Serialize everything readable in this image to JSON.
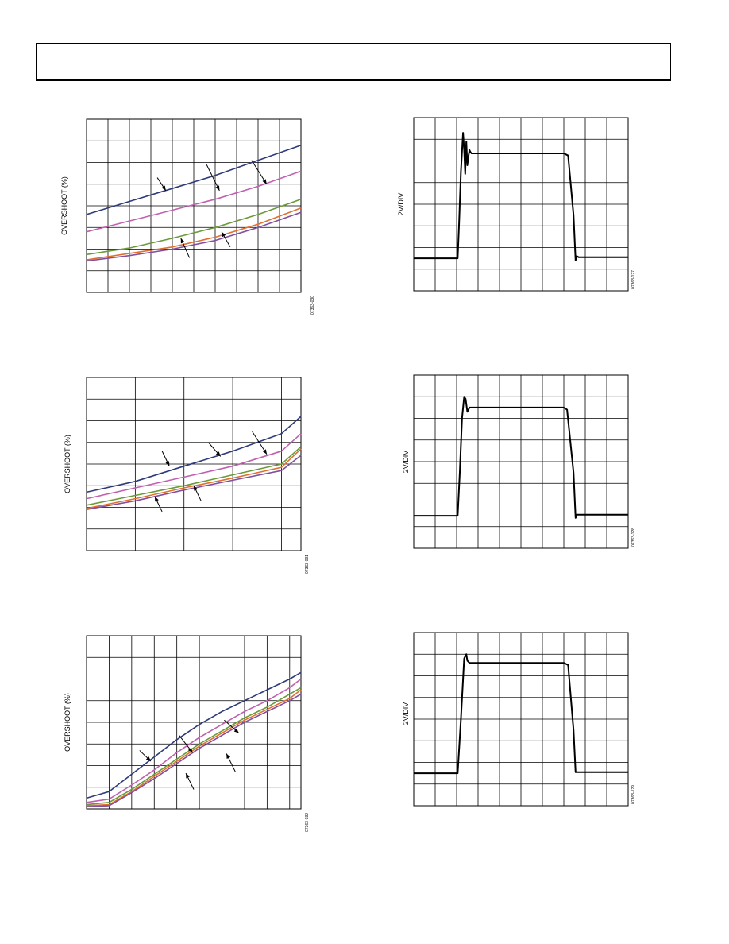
{
  "page": {
    "header": ""
  },
  "charts": [
    {
      "id": "ov1",
      "chart_data": {
        "type": "line",
        "ylabel": "OVERSHOOT (%)",
        "xlim": [
          0,
          10
        ],
        "ylim": [
          0,
          8
        ],
        "x_divisions": 10,
        "y_divisions": 8,
        "figure_id": "07363-030",
        "series": [
          {
            "color": "#2e3a7a",
            "x": [
              0,
              2,
              4,
              6,
              8,
              10
            ],
            "y": [
              3.6,
              4.2,
              4.8,
              5.4,
              6.1,
              6.8
            ]
          },
          {
            "color": "#c060b0",
            "x": [
              0,
              2,
              4,
              6,
              8,
              10
            ],
            "y": [
              2.8,
              3.3,
              3.8,
              4.3,
              4.9,
              5.6
            ]
          },
          {
            "color": "#6a9a3a",
            "x": [
              0,
              2,
              4,
              6,
              8,
              10
            ],
            "y": [
              1.75,
              2.05,
              2.5,
              3.0,
              3.6,
              4.3
            ]
          },
          {
            "color": "#e07030",
            "x": [
              0,
              2,
              4,
              6,
              8,
              10
            ],
            "y": [
              1.5,
              1.8,
              2.1,
              2.55,
              3.15,
              3.9
            ]
          },
          {
            "color": "#8050a0",
            "x": [
              0,
              2,
              4,
              6,
              8,
              10
            ],
            "y": [
              1.45,
              1.7,
              2.0,
              2.4,
              3.0,
              3.7
            ]
          }
        ],
        "arrows": [
          {
            "from": [
              3.3,
              5.3
            ],
            "to": [
              3.7,
              4.7
            ]
          },
          {
            "from": [
              5.6,
              5.9
            ],
            "to": [
              6.2,
              4.7
            ]
          },
          {
            "from": [
              7.7,
              6.1
            ],
            "to": [
              8.4,
              5.0
            ]
          },
          {
            "from": [
              4.8,
              1.6
            ],
            "to": [
              4.4,
              2.5
            ]
          },
          {
            "from": [
              6.7,
              2.1
            ],
            "to": [
              6.3,
              2.8
            ]
          }
        ]
      }
    },
    {
      "id": "pulse1",
      "chart_data": {
        "type": "line",
        "ylabel": "2V/DIV",
        "xlim": [
          0,
          10
        ],
        "ylim": [
          0,
          8
        ],
        "x_divisions": 10,
        "y_divisions": 8,
        "figure_id": "07363-127",
        "series": [
          {
            "color": "#000000",
            "x": [
              0,
              2.05,
              2.12,
              2.2,
              2.3,
              2.35,
              2.4,
              2.45,
              2.5,
              2.55,
              2.6,
              2.65,
              2.7,
              2.8,
              7.0,
              7.2,
              7.45,
              7.55,
              7.6,
              7.7,
              10
            ],
            "y": [
              1.5,
              1.5,
              3.2,
              5.5,
              7.3,
              6.5,
              5.4,
              6.9,
              5.8,
              6.2,
              6.5,
              6.4,
              6.35,
              6.35,
              6.35,
              6.25,
              3.5,
              1.4,
              1.6,
              1.55,
              1.55
            ]
          }
        ]
      }
    },
    {
      "id": "ov2",
      "chart_data": {
        "type": "line",
        "ylabel": "OVERSHOOT (%)",
        "xlim": [
          0,
          4.4
        ],
        "ylim": [
          0,
          8
        ],
        "x_divisions": 4.4,
        "y_divisions": 8,
        "figure_id": "07363-031",
        "series": [
          {
            "color": "#2e3a7a",
            "x": [
              0,
              1,
              2,
              3,
              4,
              4.4
            ],
            "y": [
              2.7,
              3.2,
              3.9,
              4.6,
              5.4,
              6.2
            ]
          },
          {
            "color": "#c060b0",
            "x": [
              0,
              1,
              2,
              3,
              4,
              4.4
            ],
            "y": [
              2.4,
              2.9,
              3.4,
              3.9,
              4.6,
              5.4
            ]
          },
          {
            "color": "#6a9a3a",
            "x": [
              0,
              1,
              2,
              3,
              4,
              4.4
            ],
            "y": [
              2.1,
              2.55,
              3.0,
              3.5,
              4.0,
              4.8
            ]
          },
          {
            "color": "#e07030",
            "x": [
              0,
              1,
              2,
              3,
              4,
              4.4
            ],
            "y": [
              1.95,
              2.4,
              2.9,
              3.35,
              3.85,
              4.7
            ]
          },
          {
            "color": "#8050a0",
            "x": [
              0,
              1,
              2,
              3,
              4,
              4.4
            ],
            "y": [
              1.9,
              2.3,
              2.8,
              3.25,
              3.7,
              4.4
            ]
          }
        ],
        "arrows": [
          {
            "from": [
              1.55,
              4.6
            ],
            "to": [
              1.7,
              3.9
            ]
          },
          {
            "from": [
              2.5,
              5.0
            ],
            "to": [
              2.75,
              4.35
            ]
          },
          {
            "from": [
              3.4,
              5.5
            ],
            "to": [
              3.7,
              4.45
            ]
          },
          {
            "from": [
              1.55,
              1.8
            ],
            "to": [
              1.4,
              2.5
            ]
          },
          {
            "from": [
              2.35,
              2.3
            ],
            "to": [
              2.2,
              3.0
            ]
          }
        ]
      }
    },
    {
      "id": "pulse2",
      "chart_data": {
        "type": "line",
        "ylabel": "2V/DIV",
        "xlim": [
          0,
          10
        ],
        "ylim": [
          0,
          8
        ],
        "x_divisions": 10,
        "y_divisions": 8,
        "figure_id": "07363-128",
        "series": [
          {
            "color": "#000000",
            "x": [
              0,
              2.05,
              2.15,
              2.25,
              2.35,
              2.42,
              2.5,
              2.6,
              2.7,
              2.8,
              7.0,
              7.15,
              7.45,
              7.55,
              7.6,
              7.7,
              10
            ],
            "y": [
              1.5,
              1.5,
              3.5,
              6.0,
              7.0,
              6.9,
              6.3,
              6.5,
              6.5,
              6.5,
              6.5,
              6.4,
              3.5,
              1.4,
              1.55,
              1.55,
              1.55
            ]
          }
        ]
      }
    },
    {
      "id": "ov3",
      "chart_data": {
        "type": "line",
        "ylabel": "OVERSHOOT (%)",
        "xlim": [
          0,
          9.5
        ],
        "ylim": [
          0,
          8
        ],
        "x_divisions": 9.5,
        "y_divisions": 8,
        "figure_id": "07363-032",
        "series": [
          {
            "color": "#2e3a7a",
            "x": [
              0,
              1,
              2,
              3,
              4,
              5,
              6,
              7,
              8,
              9,
              9.5
            ],
            "y": [
              0.5,
              0.8,
              1.6,
              2.4,
              3.2,
              3.9,
              4.5,
              5.0,
              5.5,
              6.0,
              6.3
            ]
          },
          {
            "color": "#c060b0",
            "x": [
              0,
              1,
              2,
              3,
              4,
              5,
              6,
              7,
              8,
              9,
              9.5
            ],
            "y": [
              0.3,
              0.45,
              1.1,
              1.8,
              2.6,
              3.3,
              3.9,
              4.5,
              5.0,
              5.6,
              6.0
            ]
          },
          {
            "color": "#6a9a3a",
            "x": [
              0,
              1,
              2,
              3,
              4,
              5,
              6,
              7,
              8,
              9,
              9.5
            ],
            "y": [
              0.2,
              0.3,
              0.9,
              1.6,
              2.3,
              3.0,
              3.6,
              4.2,
              4.7,
              5.3,
              5.6
            ]
          },
          {
            "color": "#e07030",
            "x": [
              0,
              1,
              2,
              3,
              4,
              5,
              6,
              7,
              8,
              9,
              9.5
            ],
            "y": [
              0.15,
              0.2,
              0.8,
              1.5,
              2.2,
              2.9,
              3.5,
              4.1,
              4.6,
              5.1,
              5.5
            ]
          },
          {
            "color": "#8050a0",
            "x": [
              0,
              1,
              2,
              3,
              4,
              5,
              6,
              7,
              8,
              9,
              9.5
            ],
            "y": [
              0.1,
              0.15,
              0.75,
              1.4,
              2.1,
              2.8,
              3.4,
              4.0,
              4.5,
              5.0,
              5.3
            ]
          }
        ],
        "arrows": [
          {
            "from": [
              2.35,
              2.7
            ],
            "to": [
              2.85,
              2.2
            ]
          },
          {
            "from": [
              4.1,
              3.4
            ],
            "to": [
              4.7,
              2.6
            ]
          },
          {
            "from": [
              6.1,
              4.1
            ],
            "to": [
              6.75,
              3.5
            ]
          },
          {
            "from": [
              4.75,
              0.9
            ],
            "to": [
              4.4,
              1.65
            ]
          },
          {
            "from": [
              6.6,
              1.7
            ],
            "to": [
              6.2,
              2.55
            ]
          }
        ]
      }
    },
    {
      "id": "pulse3",
      "chart_data": {
        "type": "line",
        "ylabel": "2V/DIV",
        "xlim": [
          0,
          10
        ],
        "ylim": [
          0,
          8
        ],
        "x_divisions": 10,
        "y_divisions": 8,
        "figure_id": "07363-129",
        "series": [
          {
            "color": "#000000",
            "x": [
              0,
              2.05,
              2.2,
              2.35,
              2.45,
              2.5,
              2.6,
              2.8,
              7.0,
              7.2,
              7.45,
              7.55,
              7.7,
              10
            ],
            "y": [
              1.5,
              1.5,
              4.0,
              6.8,
              7.0,
              6.7,
              6.6,
              6.6,
              6.6,
              6.5,
              3.5,
              1.55,
              1.55,
              1.55
            ]
          }
        ]
      }
    }
  ]
}
